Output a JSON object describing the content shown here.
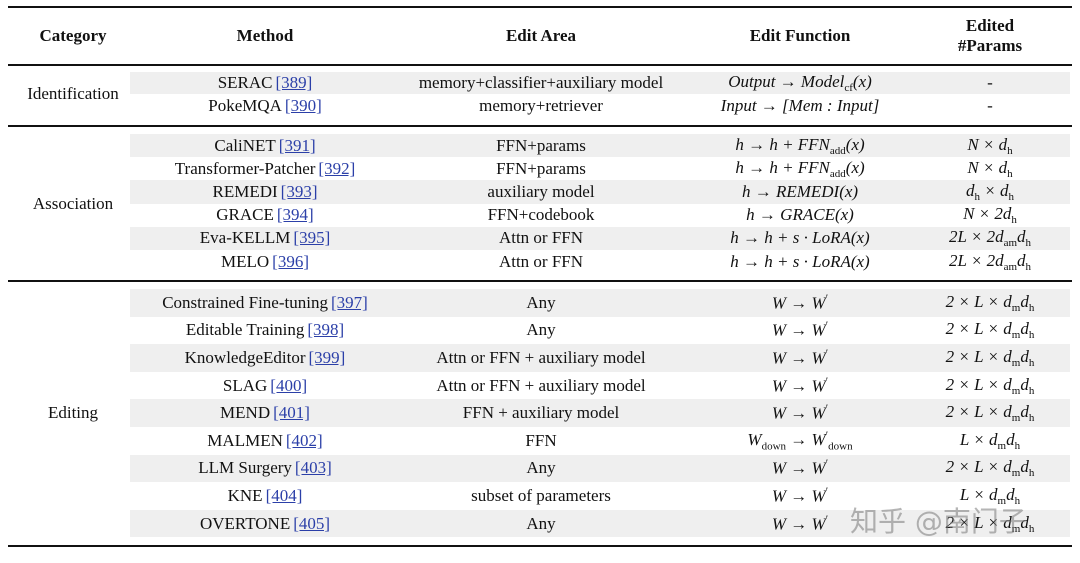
{
  "header": {
    "category": "Category",
    "method": "Method",
    "edit_area": "Edit Area",
    "edit_function": "Edit Function",
    "edited_params": [
      "Edited",
      "#Params"
    ]
  },
  "groups": [
    {
      "category": "Identification",
      "rows": [
        {
          "method": {
            "name": "SERAC",
            "ref": "[389]"
          },
          "area": "memory+classifier+auxiliary model",
          "function": [
            "Output → Model",
            {
              "sub": "cf"
            },
            "(x)"
          ],
          "params": "-"
        },
        {
          "method": {
            "name": "PokeMQA",
            "ref": "[390]"
          },
          "area": "memory+retriever",
          "function": "Input → [Mem : Input]",
          "params": "-"
        }
      ]
    },
    {
      "category": "Association",
      "rows": [
        {
          "method": {
            "name": "CaliNET",
            "ref": "[391]"
          },
          "area": "FFN+params",
          "function": [
            "h → h + FFN",
            {
              "sub": "add"
            },
            "(x)"
          ],
          "params": [
            "N × d",
            {
              "sub": "h"
            }
          ]
        },
        {
          "method": {
            "name": "Transformer-Patcher",
            "ref": "[392]"
          },
          "area": "FFN+params",
          "function": [
            "h → h + FFN",
            {
              "sub": "add"
            },
            "(x)"
          ],
          "params": [
            "N × d",
            {
              "sub": "h"
            }
          ]
        },
        {
          "method": {
            "name": "REMEDI",
            "ref": "[393]"
          },
          "area": "auxiliary model",
          "function": "h → REMEDI(x)",
          "params": [
            "d",
            {
              "sub": "h"
            },
            " × d",
            {
              "sub": "h"
            }
          ]
        },
        {
          "method": {
            "name": "GRACE",
            "ref": "[394]"
          },
          "area": "FFN+codebook",
          "function": "h → GRACE(x)",
          "params": [
            "N × 2d",
            {
              "sub": "h"
            }
          ]
        },
        {
          "method": {
            "name": "Eva-KELLM",
            "ref": "[395]"
          },
          "area": "Attn or FFN",
          "function": "h → h + s · LoRA(x)",
          "params": [
            "2L × 2d",
            {
              "sub": "am"
            },
            "d",
            {
              "sub": "h"
            }
          ]
        },
        {
          "method": {
            "name": "MELO",
            "ref": "[396]"
          },
          "area": "Attn or FFN",
          "function": "h → h + s · LoRA(x)",
          "params": [
            "2L × 2d",
            {
              "sub": "am"
            },
            "d",
            {
              "sub": "h"
            }
          ]
        }
      ]
    },
    {
      "category": "Editing",
      "rows": [
        {
          "method": {
            "name": "Constrained Fine-tuning",
            "ref": "[397]"
          },
          "area": "Any",
          "function": [
            "W → W",
            {
              "sup": "′"
            }
          ],
          "params": [
            "2 × L × d",
            {
              "sub": "m"
            },
            "d",
            {
              "sub": "h"
            }
          ]
        },
        {
          "method": {
            "name": "Editable Training",
            "ref": "[398]"
          },
          "area": "Any",
          "function": [
            "W → W",
            {
              "sup": "′"
            }
          ],
          "params": [
            "2 × L × d",
            {
              "sub": "m"
            },
            "d",
            {
              "sub": "h"
            }
          ]
        },
        {
          "method": {
            "name": "KnowledgeEditor",
            "ref": "[399]"
          },
          "area": "Attn or FFN + auxiliary model",
          "function": [
            "W → W",
            {
              "sup": "′"
            }
          ],
          "params": [
            "2 × L × d",
            {
              "sub": "m"
            },
            "d",
            {
              "sub": "h"
            }
          ]
        },
        {
          "method": {
            "name": "SLAG",
            "ref": "[400]"
          },
          "area": "Attn or FFN + auxiliary model",
          "function": [
            "W → W",
            {
              "sup": "′"
            }
          ],
          "params": [
            "2 × L × d",
            {
              "sub": "m"
            },
            "d",
            {
              "sub": "h"
            }
          ]
        },
        {
          "method": {
            "name": "MEND",
            "ref": "[401]"
          },
          "area": "FFN + auxiliary model",
          "function": [
            "W → W",
            {
              "sup": "′"
            }
          ],
          "params": [
            "2 × L × d",
            {
              "sub": "m"
            },
            "d",
            {
              "sub": "h"
            }
          ]
        },
        {
          "method": {
            "name": "MALMEN",
            "ref": "[402]"
          },
          "area": "FFN",
          "function": [
            "W",
            {
              "sub": "down"
            },
            " → W",
            {
              "sup": "′"
            },
            {
              "sub": "down"
            }
          ],
          "params": [
            "L × d",
            {
              "sub": "m"
            },
            "d",
            {
              "sub": "h"
            }
          ]
        },
        {
          "method": {
            "name": "LLM Surgery",
            "ref": "[403]"
          },
          "area": "Any",
          "function": [
            "W → W",
            {
              "sup": "′"
            }
          ],
          "params": [
            "2 × L × d",
            {
              "sub": "m"
            },
            "d",
            {
              "sub": "h"
            }
          ]
        },
        {
          "method": {
            "name": "KNE",
            "ref": "[404]"
          },
          "area": "subset of parameters",
          "function": [
            "W → W",
            {
              "sup": "′"
            }
          ],
          "params": [
            "L × d",
            {
              "sub": "m"
            },
            "d",
            {
              "sub": "h"
            }
          ]
        },
        {
          "method": {
            "name": "OVERTONE",
            "ref": "[405]"
          },
          "area": "Any",
          "function": [
            "W → W",
            {
              "sup": "′"
            }
          ],
          "params": [
            "2 × L × d",
            {
              "sub": "m"
            },
            "d",
            {
              "sub": "h"
            }
          ]
        }
      ]
    }
  ],
  "watermark": "知乎 @南门子"
}
